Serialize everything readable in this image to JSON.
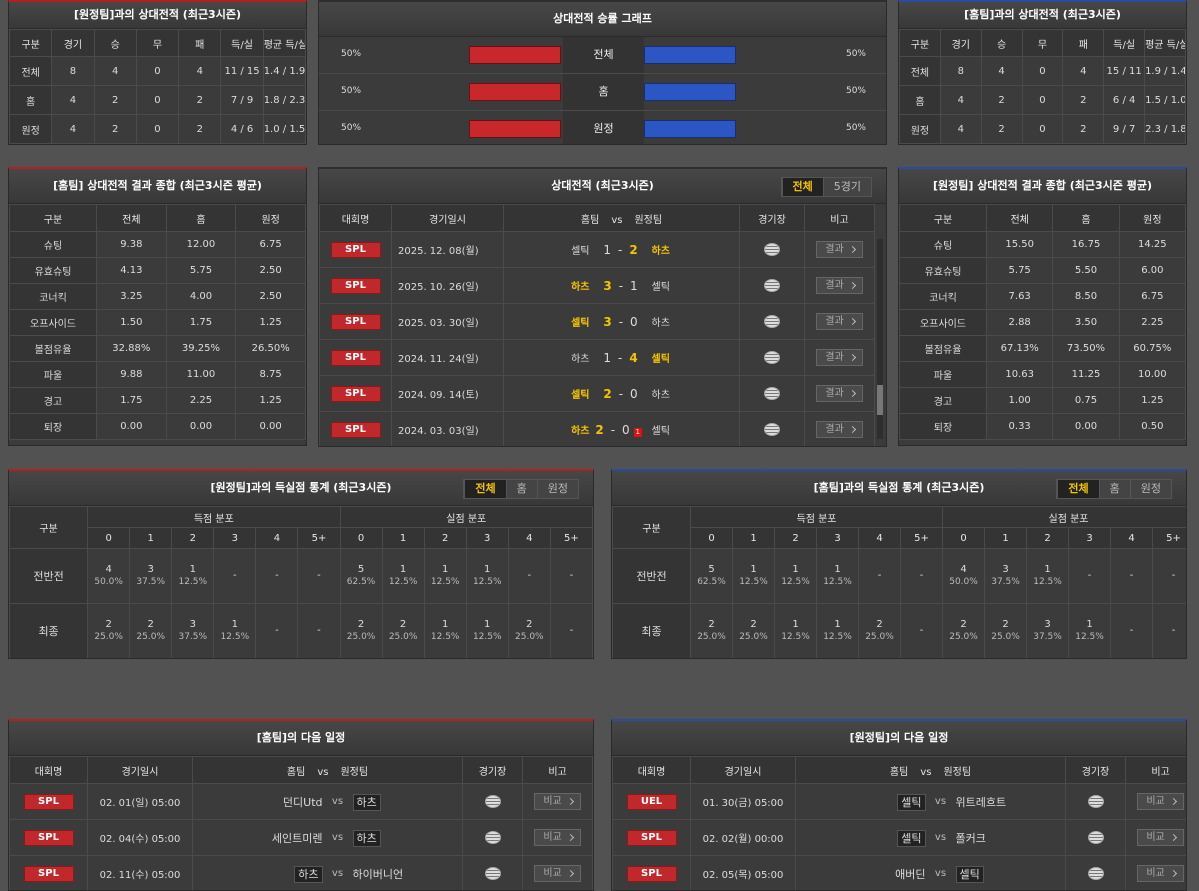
{
  "h2h_away": {
    "title": "[원정팀]과의 상대전적 (최근3시즌)",
    "accent": "red",
    "headers": [
      "구분",
      "경기",
      "승",
      "무",
      "패",
      "득/실",
      "평균 득/실"
    ],
    "rows": [
      [
        "전체",
        "8",
        "4",
        "0",
        "4",
        "11 / 15",
        "1.4 / 1.9"
      ],
      [
        "홈",
        "4",
        "2",
        "0",
        "2",
        "7 / 9",
        "1.8 / 2.3"
      ],
      [
        "원정",
        "4",
        "2",
        "0",
        "2",
        "4 / 6",
        "1.0 / 1.5"
      ]
    ]
  },
  "win_graph": {
    "title": "상대전적 승률 그래프",
    "accent": "none",
    "home_color": "#c8282b",
    "away_color": "#2c56c4",
    "rows": [
      {
        "label": "전체",
        "home": 50,
        "home_label": "50%",
        "away": 50,
        "away_label": "50%"
      },
      {
        "label": "홈",
        "home": 50,
        "home_label": "50%",
        "away": 50,
        "away_label": "50%"
      },
      {
        "label": "원정",
        "home": 50,
        "home_label": "50%",
        "away": 50,
        "away_label": "50%"
      }
    ]
  },
  "h2h_home": {
    "title": "[홈팀]과의 상대전적 (최근3시즌)",
    "accent": "blue",
    "headers": [
      "구분",
      "경기",
      "승",
      "무",
      "패",
      "득/실",
      "평균 득/실"
    ],
    "rows": [
      [
        "전체",
        "8",
        "4",
        "0",
        "4",
        "15 / 11",
        "1.9 / 1.4"
      ],
      [
        "홈",
        "4",
        "2",
        "0",
        "2",
        "6 / 4",
        "1.5 / 1.0"
      ],
      [
        "원정",
        "4",
        "2",
        "0",
        "2",
        "9 / 7",
        "2.3 / 1.8"
      ]
    ]
  },
  "home_summary": {
    "title": "[홈팀] 상대전적 결과 종합 (최근3시즌 평균)",
    "accent": "red",
    "headers": [
      "구분",
      "전체",
      "홈",
      "원정"
    ],
    "rows": [
      [
        "슈팅",
        "9.38",
        "12.00",
        "6.75"
      ],
      [
        "유효슈팅",
        "4.13",
        "5.75",
        "2.50"
      ],
      [
        "코너킥",
        "3.25",
        "4.00",
        "2.50"
      ],
      [
        "오프사이드",
        "1.50",
        "1.75",
        "1.25"
      ],
      [
        "볼점유율",
        "32.88%",
        "39.25%",
        "26.50%"
      ],
      [
        "파울",
        "9.88",
        "11.00",
        "8.75"
      ],
      [
        "경고",
        "1.75",
        "2.25",
        "1.25"
      ],
      [
        "퇴장",
        "0.00",
        "0.00",
        "0.00"
      ]
    ]
  },
  "matches": {
    "title": "상대전적 (최근3시즌)",
    "accent": "none",
    "tabs": [
      "전체",
      "5경기"
    ],
    "active_tab": 0,
    "headers": [
      "대회명",
      "경기일시",
      "홈팀",
      "vs",
      "원정팀",
      "경기장",
      "비고"
    ],
    "rows": [
      {
        "competition": "SPL",
        "date": "2025. 12. 08(월)",
        "home": "셀틱",
        "home_score": "1",
        "sep": "-",
        "away_score": "2",
        "away": "하츠",
        "note": "결과",
        "winner": "away"
      },
      {
        "competition": "SPL",
        "date": "2025. 10. 26(일)",
        "home": "하츠",
        "home_score": "3",
        "sep": "-",
        "away_score": "1",
        "away": "셀틱",
        "note": "결과",
        "winner": "home"
      },
      {
        "competition": "SPL",
        "date": "2025. 03. 30(일)",
        "home": "셀틱",
        "home_score": "3",
        "sep": "-",
        "away_score": "0",
        "away": "하츠",
        "note": "결과",
        "winner": "home"
      },
      {
        "competition": "SPL",
        "date": "2024. 11. 24(일)",
        "home": "하츠",
        "home_score": "1",
        "sep": "-",
        "away_score": "4",
        "away": "셀틱",
        "note": "결과",
        "winner": "away"
      },
      {
        "competition": "SPL",
        "date": "2024. 09. 14(토)",
        "home": "셀틱",
        "home_score": "2",
        "sep": "-",
        "away_score": "0",
        "away": "하츠",
        "note": "결과",
        "winner": "home"
      },
      {
        "competition": "SPL",
        "date": "2024. 03. 03(일)",
        "home": "하츠",
        "home_score": "2",
        "sep": "-",
        "away_score": "0",
        "red_card": "1",
        "away": "셀틱",
        "note": "결과",
        "winner": "home"
      }
    ]
  },
  "away_summary": {
    "title": "[원정팀] 상대전적 결과 종합 (최근3시즌 평균)",
    "accent": "blue",
    "headers": [
      "구분",
      "전체",
      "홈",
      "원정"
    ],
    "rows": [
      [
        "슈팅",
        "15.50",
        "16.75",
        "14.25"
      ],
      [
        "유효슈팅",
        "5.75",
        "5.50",
        "6.00"
      ],
      [
        "코너킥",
        "7.63",
        "8.50",
        "6.75"
      ],
      [
        "오프사이드",
        "2.88",
        "3.50",
        "2.25"
      ],
      [
        "볼점유율",
        "67.13%",
        "73.50%",
        "60.75%"
      ],
      [
        "파울",
        "10.63",
        "11.25",
        "10.00"
      ],
      [
        "경고",
        "1.00",
        "0.75",
        "1.25"
      ],
      [
        "퇴장",
        "0.33",
        "0.00",
        "0.50"
      ]
    ]
  },
  "dist_away": {
    "title": "[원정팀]과의 득실점 통계 (최근3시즌)",
    "accent": "red",
    "tabs": [
      "전체",
      "홈",
      "원정"
    ],
    "active_tab": 0,
    "row_header": "구분",
    "scored": {
      "label": "득점 분포",
      "bins": [
        "0",
        "1",
        "2",
        "3",
        "4",
        "5+"
      ]
    },
    "conceded": {
      "label": "실점 분포",
      "bins": [
        "0",
        "1",
        "2",
        "3",
        "4",
        "5+"
      ]
    },
    "rows": [
      {
        "label": "전반전",
        "scored": [
          [
            "4",
            "50.0%"
          ],
          [
            "3",
            "37.5%"
          ],
          [
            "1",
            "12.5%"
          ],
          [
            "-"
          ],
          [
            "-"
          ],
          [
            "-"
          ]
        ],
        "conceded": [
          [
            "5",
            "62.5%"
          ],
          [
            "1",
            "12.5%"
          ],
          [
            "1",
            "12.5%"
          ],
          [
            "1",
            "12.5%"
          ],
          [
            "-"
          ],
          [
            "-"
          ]
        ]
      },
      {
        "label": "최종",
        "scored": [
          [
            "2",
            "25.0%"
          ],
          [
            "2",
            "25.0%"
          ],
          [
            "3",
            "37.5%"
          ],
          [
            "1",
            "12.5%"
          ],
          [
            "-"
          ],
          [
            "-"
          ]
        ],
        "conceded": [
          [
            "2",
            "25.0%"
          ],
          [
            "2",
            "25.0%"
          ],
          [
            "1",
            "12.5%"
          ],
          [
            "1",
            "12.5%"
          ],
          [
            "2",
            "25.0%"
          ],
          [
            "-"
          ]
        ]
      }
    ]
  },
  "dist_home": {
    "title": "[홈팀]과의 득실점 통계 (최근3시즌)",
    "accent": "blue",
    "tabs": [
      "전체",
      "홈",
      "원정"
    ],
    "active_tab": 0,
    "row_header": "구분",
    "scored": {
      "label": "득점 분포",
      "bins": [
        "0",
        "1",
        "2",
        "3",
        "4",
        "5+"
      ]
    },
    "conceded": {
      "label": "실점 분포",
      "bins": [
        "0",
        "1",
        "2",
        "3",
        "4",
        "5+"
      ]
    },
    "rows": [
      {
        "label": "전반전",
        "scored": [
          [
            "5",
            "62.5%"
          ],
          [
            "1",
            "12.5%"
          ],
          [
            "1",
            "12.5%"
          ],
          [
            "1",
            "12.5%"
          ],
          [
            "-"
          ],
          [
            "-"
          ]
        ],
        "conceded": [
          [
            "4",
            "50.0%"
          ],
          [
            "3",
            "37.5%"
          ],
          [
            "1",
            "12.5%"
          ],
          [
            "-"
          ],
          [
            "-"
          ],
          [
            "-"
          ]
        ]
      },
      {
        "label": "최종",
        "scored": [
          [
            "2",
            "25.0%"
          ],
          [
            "2",
            "25.0%"
          ],
          [
            "1",
            "12.5%"
          ],
          [
            "1",
            "12.5%"
          ],
          [
            "2",
            "25.0%"
          ],
          [
            "-"
          ]
        ],
        "conceded": [
          [
            "2",
            "25.0%"
          ],
          [
            "2",
            "25.0%"
          ],
          [
            "3",
            "37.5%"
          ],
          [
            "1",
            "12.5%"
          ],
          [
            "-"
          ],
          [
            "-"
          ]
        ]
      }
    ]
  },
  "sched_home": {
    "title": "[홈팀]의 다음 일정",
    "accent": "red",
    "headers": [
      "대회명",
      "경기일시",
      "홈팀",
      "vs",
      "원정팀",
      "경기장",
      "비고"
    ],
    "rows": [
      {
        "competition": "SPL",
        "datetime": "02. 01(일) 05:00",
        "home": "던디Utd",
        "vs": "vs",
        "away": "하츠",
        "note": "비교",
        "boxed": "away"
      },
      {
        "competition": "SPL",
        "datetime": "02. 04(수) 05:00",
        "home": "세인트미렌",
        "vs": "vs",
        "away": "하츠",
        "note": "비교",
        "boxed": "away"
      },
      {
        "competition": "SPL",
        "datetime": "02. 11(수) 05:00",
        "home": "하츠",
        "vs": "vs",
        "away": "하이버니언",
        "note": "비교",
        "boxed": "home"
      }
    ]
  },
  "sched_away": {
    "title": "[원정팀]의 다음 일정",
    "accent": "blue",
    "headers": [
      "대회명",
      "경기일시",
      "홈팀",
      "vs",
      "원정팀",
      "경기장",
      "비고"
    ],
    "rows": [
      {
        "competition": "UEL",
        "datetime": "01. 30(금) 05:00",
        "home": "셀틱",
        "vs": "vs",
        "away": "위트레흐트",
        "note": "비교",
        "boxed": "home"
      },
      {
        "competition": "SPL",
        "datetime": "02. 02(월) 00:00",
        "home": "셀틱",
        "vs": "vs",
        "away": "폴커크",
        "note": "비교",
        "boxed": "home"
      },
      {
        "competition": "SPL",
        "datetime": "02. 05(목) 05:00",
        "home": "애버딘",
        "vs": "vs",
        "away": "셀틱",
        "note": "비교",
        "boxed": "away"
      }
    ]
  }
}
